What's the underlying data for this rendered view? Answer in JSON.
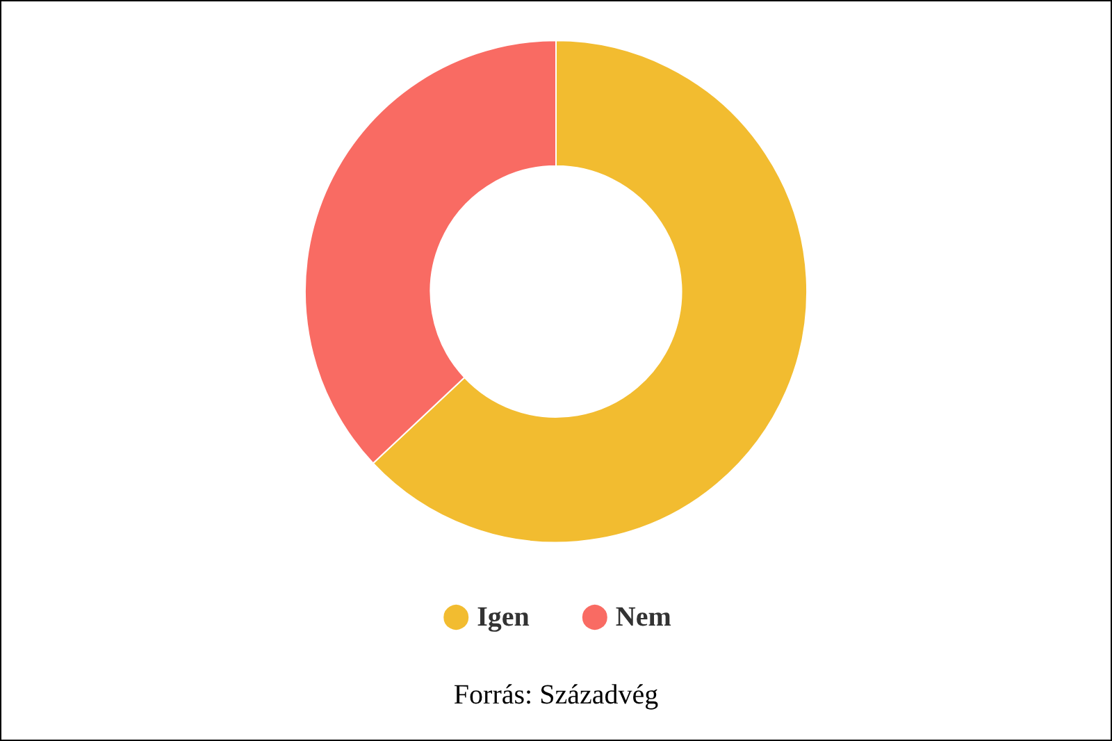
{
  "chart_data": {
    "type": "donut",
    "categories": [
      "Igen",
      "Nem"
    ],
    "values": [
      63,
      37
    ],
    "colors": [
      "#f2bc30",
      "#f96b63"
    ],
    "legend": "bottom",
    "annotations": [
      "Forrás: Századvég"
    ]
  }
}
